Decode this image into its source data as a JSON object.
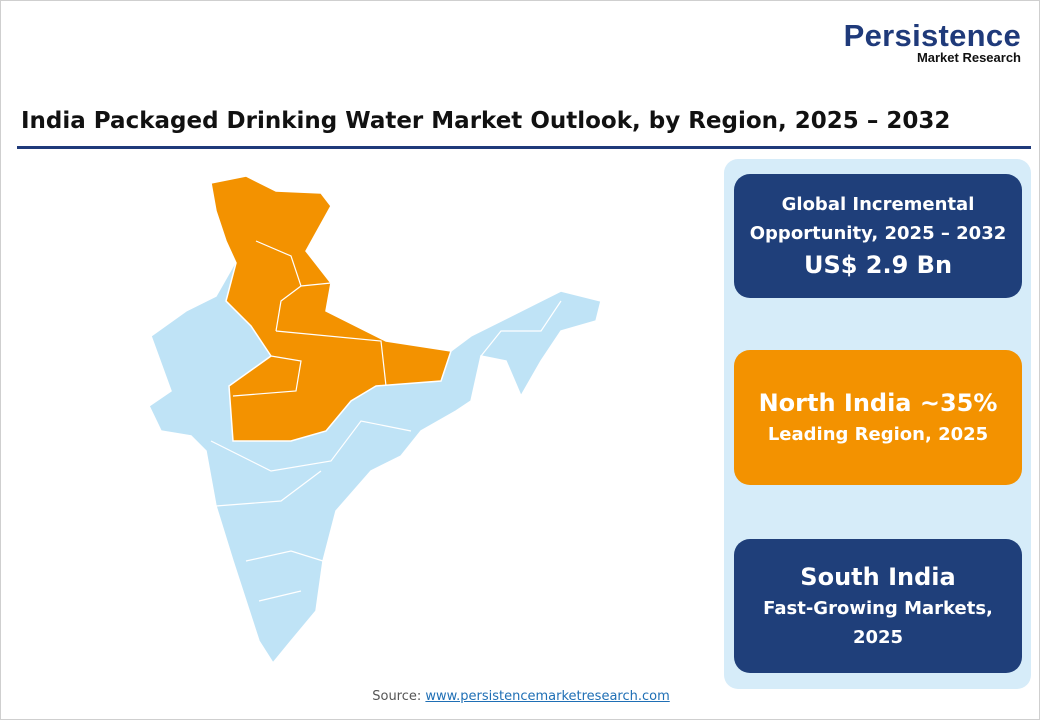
{
  "logo": {
    "main": "Persistence",
    "sub": "Market Research"
  },
  "title": "India Packaged Drinking Water Market Outlook, by Region, 2025 – 2032",
  "map": {
    "highlight_region": "North India",
    "colors": {
      "highlight": "#f39200",
      "base": "#bfe3f6",
      "border": "#ffffff"
    }
  },
  "cards": [
    {
      "line1": "Global Incremental",
      "line2": "Opportunity, 2025 – 2032",
      "value": "US$ 2.9 Bn",
      "color": "#1f3f7a"
    },
    {
      "value": "North India ~35%",
      "line1": "Leading Region, 2025",
      "color": "#f39200"
    },
    {
      "value": "South India",
      "line1": "Fast-Growing Markets,",
      "line2": "2025",
      "color": "#1f3f7a"
    }
  ],
  "source": {
    "label": "Source:",
    "link": "www.persistencemarketresearch.com"
  }
}
